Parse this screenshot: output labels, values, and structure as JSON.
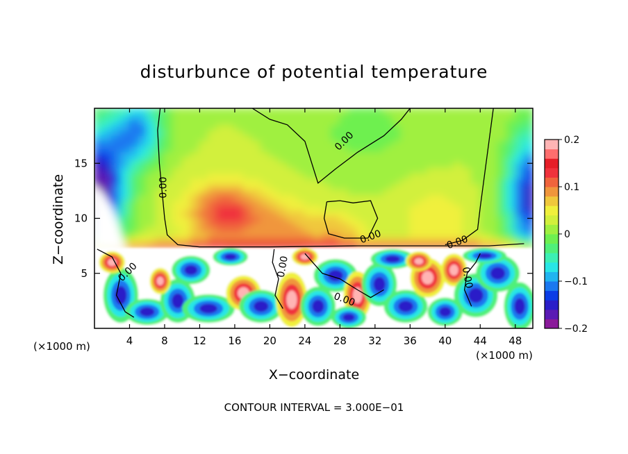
{
  "chart_data": {
    "type": "heatmap",
    "title": "disturbunce of potential temperature",
    "xlabel": "X−coordinate",
    "ylabel": "Z−coordinate",
    "x_unit": "(×1000 m)",
    "x_unit_right": "(×1000 m)",
    "x_ticks": [
      4,
      8,
      12,
      16,
      20,
      24,
      28,
      32,
      36,
      40,
      44,
      48
    ],
    "y_ticks": [
      5,
      10,
      15
    ],
    "xlim": [
      0,
      50
    ],
    "ylim": [
      0,
      20
    ],
    "inversion_height": 7.3,
    "colorbar": {
      "range": [
        -0.2,
        0.2
      ],
      "ticks": [
        {
          "value": 0.2,
          "label": "0.2"
        },
        {
          "value": 0.1,
          "label": "0.1"
        },
        {
          "value": 0,
          "label": "0"
        },
        {
          "value": -0.1,
          "label": "−0.1"
        },
        {
          "value": -0.2,
          "label": "−0.2"
        }
      ],
      "colors": [
        "#8a1a9a",
        "#5a1ab4",
        "#2a1ec8",
        "#0a3ce6",
        "#1a78f0",
        "#20b4f0",
        "#28e6e6",
        "#3cf0b4",
        "#50f07a",
        "#6ef050",
        "#a0f040",
        "#d2f03c",
        "#f0f03c",
        "#f0c83c",
        "#f0963c",
        "#f0643c",
        "#f0323c",
        "#e61e28",
        "#ff6e6e",
        "#ffb4b4"
      ]
    },
    "contour_labels": [
      {
        "text": "0.00",
        "x": 7.9,
        "z": 12.8,
        "rotate": -90
      },
      {
        "text": "0.00",
        "x": 28.5,
        "z": 17.0,
        "rotate": -45
      },
      {
        "text": "0.00",
        "x": 31.5,
        "z": 8.3,
        "rotate": -20
      },
      {
        "text": "0.00",
        "x": 41.4,
        "z": 7.8,
        "rotate": -20
      },
      {
        "text": "0.00",
        "x": 3.8,
        "z": 5.1,
        "rotate": -45
      },
      {
        "text": "0.00",
        "x": 21.5,
        "z": 5.6,
        "rotate": -80
      },
      {
        "text": "0.00",
        "x": 28.5,
        "z": 2.6,
        "rotate": 20
      },
      {
        "text": "0.00",
        "x": 42.5,
        "z": 4.6,
        "rotate": 80
      }
    ],
    "footer": "CONTOUR INTERVAL = 3.000E−01"
  }
}
